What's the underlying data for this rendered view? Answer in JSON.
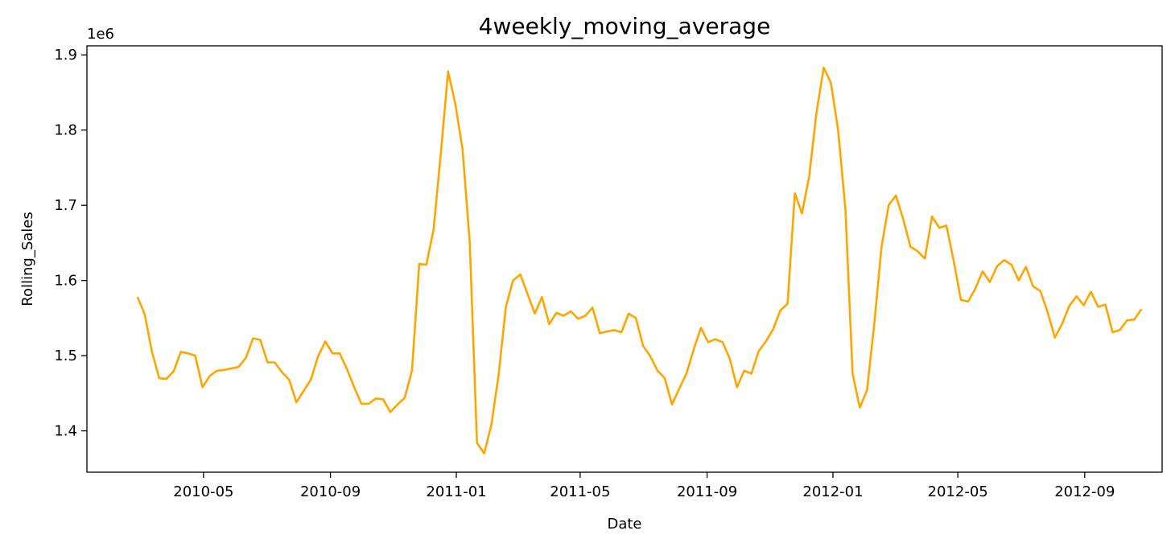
{
  "chart_data": {
    "type": "line",
    "title": "4weekly_moving_average",
    "xlabel": "Date",
    "ylabel": "Rolling_Sales",
    "y_offset_text": "1e6",
    "y_scale": 1000000,
    "xlim": [
      "2010-01-08",
      "2012-11-15"
    ],
    "ylim": [
      1.345,
      1.912
    ],
    "x_ticks": [
      "2010-05-01",
      "2010-09-01",
      "2011-01-01",
      "2011-05-01",
      "2011-09-01",
      "2012-01-01",
      "2012-05-01",
      "2012-09-01"
    ],
    "x_tick_labels": [
      "2010-05",
      "2010-09",
      "2011-01",
      "2011-05",
      "2011-09",
      "2012-01",
      "2012-05",
      "2012-09"
    ],
    "y_ticks": [
      1.4,
      1.5,
      1.6,
      1.7,
      1.8,
      1.9
    ],
    "y_tick_labels": [
      "1.4",
      "1.5",
      "1.6",
      "1.7",
      "1.8",
      "1.9"
    ],
    "grid": false,
    "legend": "none",
    "line_color": "#FFA500",
    "start_date": "2010-02-26",
    "interval_days": 7,
    "values": [
      1.578,
      1.555,
      1.505,
      1.47,
      1.469,
      1.479,
      1.505,
      1.503,
      1.5,
      1.458,
      1.473,
      1.48,
      1.481,
      1.483,
      1.485,
      1.497,
      1.523,
      1.521,
      1.491,
      1.491,
      1.478,
      1.468,
      1.438,
      1.453,
      1.468,
      1.499,
      1.519,
      1.503,
      1.503,
      1.482,
      1.458,
      1.436,
      1.436,
      1.443,
      1.442,
      1.425,
      1.435,
      1.444,
      1.48,
      1.622,
      1.621,
      1.668,
      1.77,
      1.878,
      1.835,
      1.775,
      1.65,
      1.384,
      1.37,
      1.408,
      1.475,
      1.565,
      1.6,
      1.608,
      1.582,
      1.556,
      1.578,
      1.542,
      1.557,
      1.553,
      1.559,
      1.549,
      1.553,
      1.564,
      1.53,
      1.532,
      1.534,
      1.531,
      1.556,
      1.55,
      1.513,
      1.499,
      1.48,
      1.47,
      1.435,
      1.456,
      1.476,
      1.508,
      1.537,
      1.518,
      1.522,
      1.518,
      1.496,
      1.458,
      1.48,
      1.476,
      1.506,
      1.519,
      1.535,
      1.56,
      1.569,
      1.716,
      1.689,
      1.739,
      1.823,
      1.883,
      1.863,
      1.8,
      1.696,
      1.476,
      1.431,
      1.454,
      1.542,
      1.644,
      1.7,
      1.713,
      1.682,
      1.645,
      1.639,
      1.629,
      1.685,
      1.67,
      1.673,
      1.626,
      1.574,
      1.572,
      1.589,
      1.612,
      1.598,
      1.619,
      1.627,
      1.621,
      1.6,
      1.618,
      1.592,
      1.586,
      1.558,
      1.524,
      1.542,
      1.566,
      1.579,
      1.567,
      1.585,
      1.565,
      1.568,
      1.531,
      1.534,
      1.547,
      1.548,
      1.562
    ]
  }
}
